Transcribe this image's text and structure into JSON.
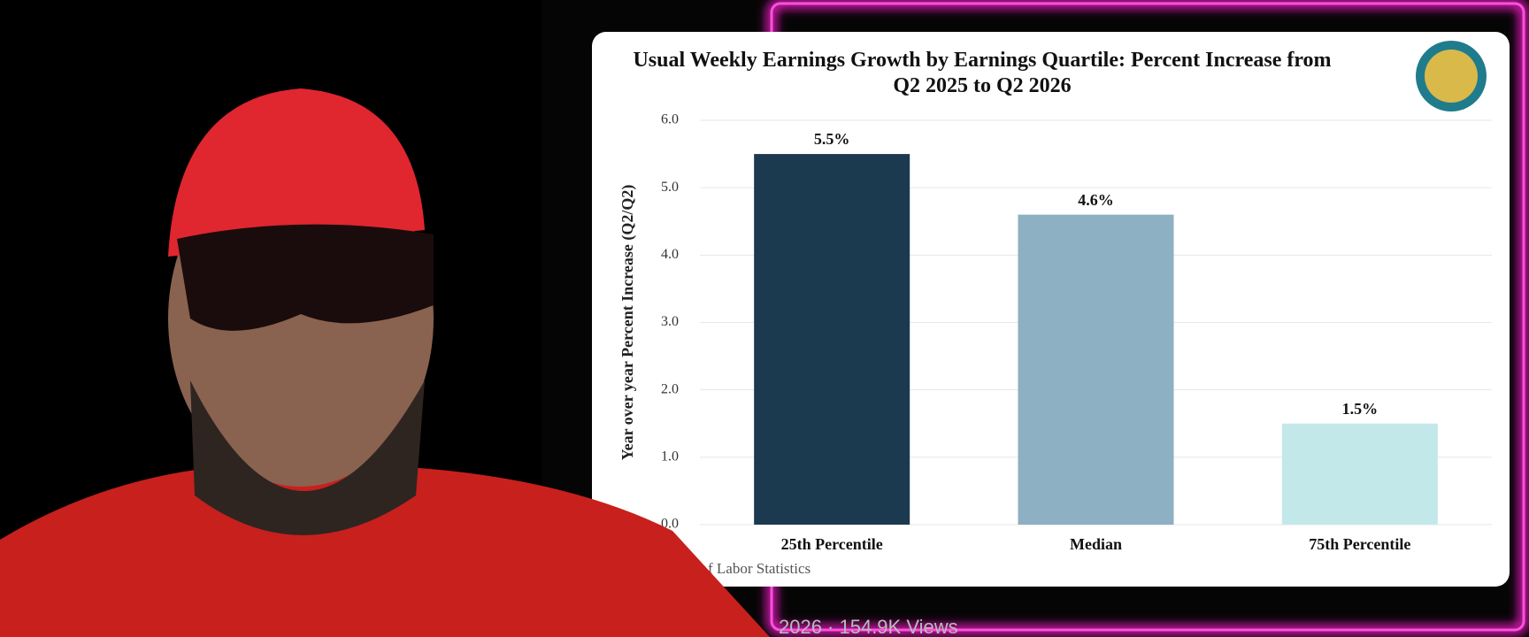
{
  "chart_data": {
    "type": "bar",
    "title": "Usual Weekly Earnings Growth by Earnings Quartile: Percent Increase from Q2 2025 to Q2 2026",
    "y_label": "Year over year Percent Increase (Q2/Q2)",
    "categories": [
      "25th Percentile",
      "Median",
      "75th Percentile"
    ],
    "values": [
      5.5,
      4.6,
      1.5
    ],
    "value_labels": [
      "5.5%",
      "4.6%",
      "1.5%"
    ],
    "colors": [
      "#1b3a4f",
      "#8db0c2",
      "#c3e8ea"
    ],
    "ylim": [
      0,
      6
    ],
    "yticks": [
      {
        "value": 0,
        "label": "0.0"
      },
      {
        "value": 1,
        "label": "1.0"
      },
      {
        "value": 2,
        "label": "2.0"
      },
      {
        "value": 3,
        "label": "3.0"
      },
      {
        "value": 4,
        "label": "4.0"
      },
      {
        "value": 5,
        "label": "5.0"
      },
      {
        "value": 6,
        "label": "6.0"
      }
    ],
    "grid": true,
    "source": "f Labor Statistics"
  },
  "views": "2026 · 154.9K Views"
}
